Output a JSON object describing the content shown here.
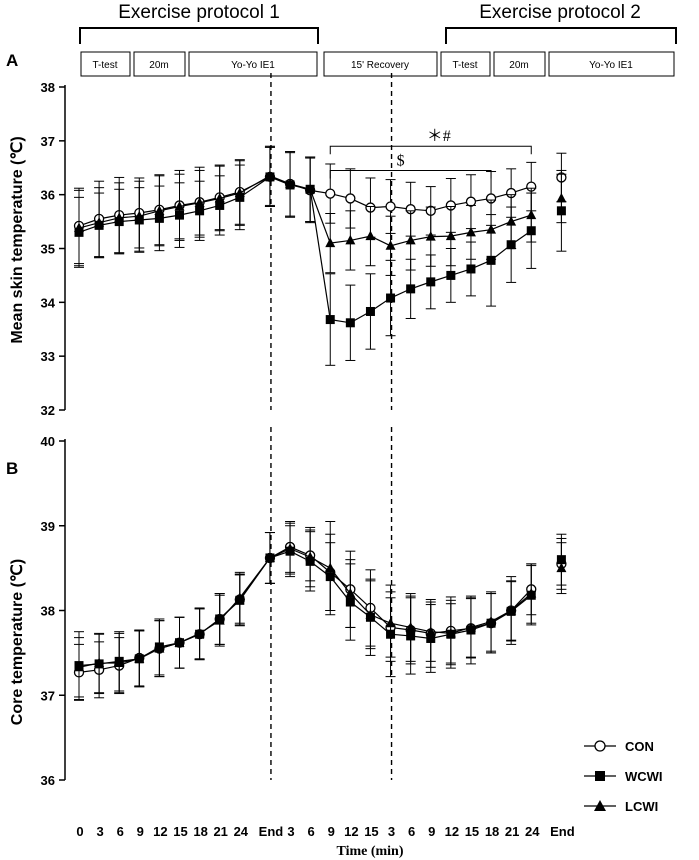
{
  "protocol": {
    "title1": "Exercise protocol 1",
    "title2": "Exercise protocol 2",
    "boxes": [
      "T-test",
      "20m",
      "Yo-Yo IE1",
      "15' Recovery",
      "T-test",
      "20m",
      "Yo-Yo IE1"
    ]
  },
  "x_axis": {
    "tick_labels": [
      "0",
      "3",
      "6",
      "9",
      "12",
      "15",
      "18",
      "21",
      "24",
      "End",
      "3",
      "6",
      "9",
      "12",
      "15",
      "3",
      "6",
      "9",
      "12",
      "15",
      "18",
      "21",
      "24",
      "End"
    ],
    "label": "Time (min)"
  },
  "legend": {
    "con": "CON",
    "wcwi": "WCWI",
    "lcwi": "LCWI"
  },
  "colors": {
    "ink": "#000000",
    "background": "#ffffff"
  },
  "chart_data": [
    {
      "type": "line",
      "panel": "A",
      "ylabel": "Mean skin temperature (℃)",
      "ylim": [
        32,
        38
      ],
      "yticks": [
        "32",
        "33",
        "34",
        "35",
        "36",
        "37",
        "38"
      ],
      "positions": [
        0,
        1,
        2,
        3,
        4,
        5,
        6,
        7,
        8,
        9.5,
        10.5,
        11.5,
        12.5,
        13.5,
        14.5,
        15.5,
        16.5,
        17.5,
        18.5,
        19.5,
        20.5,
        21.5,
        22.5,
        24
      ],
      "annotations": {
        "sig_top": "＊#",
        "sig_bottom": "$"
      },
      "series": [
        {
          "name": "CON",
          "marker": "circle",
          "values": [
            35.42,
            35.55,
            35.62,
            35.66,
            35.72,
            35.8,
            35.86,
            35.95,
            36.05,
            36.33,
            36.2,
            36.08,
            36.02,
            35.93,
            35.76,
            35.78,
            35.73,
            35.7,
            35.8,
            35.87,
            35.93,
            36.03,
            36.15,
            36.32
          ],
          "errors": [
            0.7,
            0.7,
            0.7,
            0.65,
            0.65,
            0.65,
            0.65,
            0.6,
            0.6,
            0.55,
            0.6,
            0.6,
            0.55,
            0.55,
            0.55,
            0.5,
            0.5,
            0.45,
            0.5,
            0.5,
            0.5,
            0.45,
            0.45,
            0.45
          ]
        },
        {
          "name": "WCWI",
          "marker": "square",
          "values": [
            35.3,
            35.43,
            35.5,
            35.53,
            35.56,
            35.62,
            35.7,
            35.8,
            35.95,
            36.33,
            36.18,
            36.1,
            33.68,
            33.62,
            33.83,
            34.08,
            34.25,
            34.38,
            34.5,
            34.62,
            34.78,
            35.07,
            35.33,
            35.7
          ],
          "errors": [
            0.65,
            0.6,
            0.6,
            0.6,
            0.6,
            0.6,
            0.55,
            0.55,
            0.6,
            0.55,
            0.6,
            0.6,
            0.85,
            0.7,
            0.7,
            0.7,
            0.55,
            0.5,
            0.5,
            0.5,
            0.85,
            0.7,
            0.7,
            0.75
          ]
        },
        {
          "name": "LCWI",
          "marker": "triangle",
          "values": [
            35.38,
            35.48,
            35.57,
            35.6,
            35.7,
            35.78,
            35.85,
            35.93,
            36.03,
            36.35,
            36.2,
            36.1,
            35.1,
            35.15,
            35.23,
            35.05,
            35.15,
            35.22,
            35.23,
            35.3,
            35.35,
            35.5,
            35.62,
            35.93
          ],
          "errors": [
            0.7,
            0.65,
            0.65,
            0.65,
            0.65,
            0.6,
            0.6,
            0.6,
            0.6,
            0.55,
            0.6,
            0.6,
            0.55,
            0.55,
            0.55,
            0.55,
            0.55,
            0.55,
            0.55,
            0.5,
            0.55,
            0.5,
            0.5,
            0.45
          ]
        }
      ]
    },
    {
      "type": "line",
      "panel": "B",
      "ylabel": "Core temperature (℃)",
      "ylim": [
        36,
        40
      ],
      "yticks": [
        "36",
        "37",
        "38",
        "39",
        "40"
      ],
      "positions": [
        0,
        1,
        2,
        3,
        4,
        5,
        6,
        7,
        8,
        9.5,
        10.5,
        11.5,
        12.5,
        13.5,
        14.5,
        15.5,
        16.5,
        17.5,
        18.5,
        19.5,
        20.5,
        21.5,
        22.5,
        24
      ],
      "series": [
        {
          "name": "CON",
          "marker": "circle",
          "values": [
            37.27,
            37.3,
            37.35,
            37.44,
            37.55,
            37.62,
            37.72,
            37.9,
            38.13,
            38.62,
            38.75,
            38.65,
            38.45,
            38.25,
            38.03,
            37.8,
            37.77,
            37.73,
            37.76,
            37.79,
            37.85,
            38.0,
            38.25,
            38.55
          ],
          "errors": [
            0.33,
            0.33,
            0.33,
            0.33,
            0.33,
            0.3,
            0.3,
            0.3,
            0.3,
            0.3,
            0.3,
            0.3,
            0.45,
            0.45,
            0.45,
            0.35,
            0.4,
            0.4,
            0.4,
            0.35,
            0.35,
            0.4,
            0.3,
            0.3
          ]
        },
        {
          "name": "WCWI",
          "marker": "square",
          "values": [
            37.35,
            37.37,
            37.4,
            37.43,
            37.57,
            37.62,
            37.72,
            37.9,
            38.12,
            38.62,
            38.7,
            38.58,
            38.4,
            38.1,
            37.92,
            37.72,
            37.7,
            37.67,
            37.72,
            37.77,
            37.85,
            37.99,
            38.18,
            38.6
          ],
          "errors": [
            0.4,
            0.35,
            0.35,
            0.33,
            0.33,
            0.3,
            0.3,
            0.3,
            0.3,
            0.3,
            0.3,
            0.35,
            0.4,
            0.45,
            0.45,
            0.5,
            0.45,
            0.4,
            0.4,
            0.4,
            0.35,
            0.35,
            0.35,
            0.3
          ]
        },
        {
          "name": "LCWI",
          "marker": "triangle",
          "values": [
            37.33,
            37.38,
            37.38,
            37.43,
            37.55,
            37.62,
            37.73,
            37.88,
            38.15,
            38.62,
            38.73,
            38.63,
            38.5,
            38.2,
            37.95,
            37.85,
            37.8,
            37.75,
            37.73,
            37.8,
            37.87,
            38.0,
            38.2,
            38.5
          ],
          "errors": [
            0.35,
            0.35,
            0.35,
            0.33,
            0.33,
            0.3,
            0.3,
            0.3,
            0.3,
            0.3,
            0.3,
            0.35,
            0.55,
            0.4,
            0.4,
            0.45,
            0.4,
            0.35,
            0.35,
            0.35,
            0.35,
            0.35,
            0.35,
            0.3
          ]
        }
      ]
    }
  ]
}
